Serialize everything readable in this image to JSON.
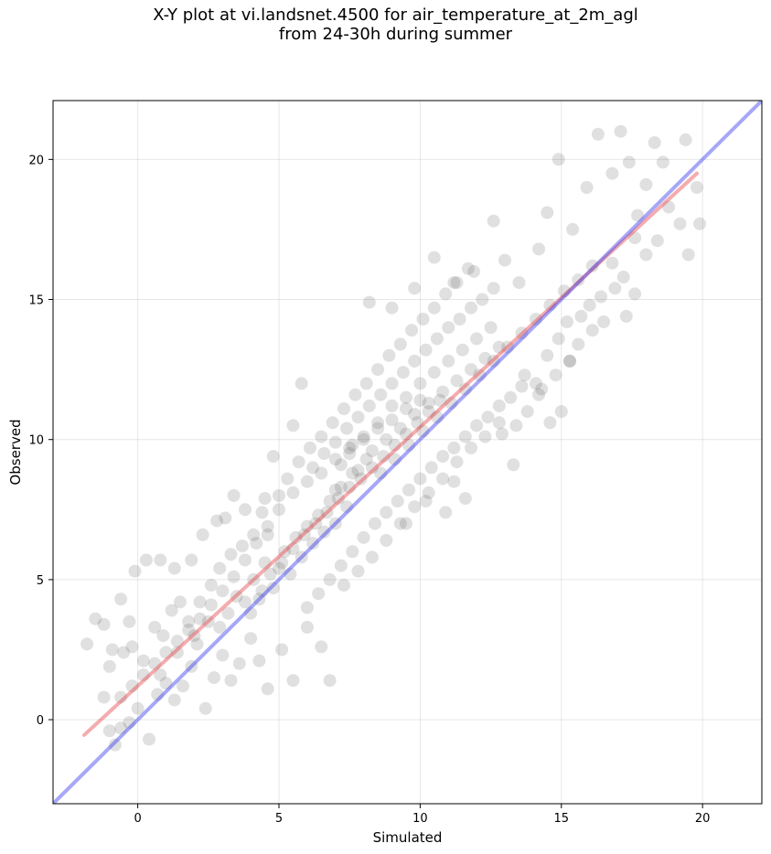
{
  "figure": {
    "title_line1": "X-Y plot at vi.landsnet.4500 for air_temperature_at_2m_agl",
    "title_line2": "from 24-30h during summer"
  },
  "chart_data": {
    "type": "scatter",
    "title": "X-Y plot at vi.landsnet.4500 for air_temperature_at_2m_agl from 24-30h during summer",
    "xlabel": "Simulated",
    "ylabel": "Observed",
    "xlim": [
      -3.0,
      22.1
    ],
    "ylim": [
      -3.0,
      22.1
    ],
    "xticks": [
      0,
      5,
      10,
      15,
      20
    ],
    "yticks": [
      0,
      5,
      10,
      15,
      20
    ],
    "grid": true,
    "point_color": "#555555",
    "point_alpha": 0.18,
    "points": [
      [
        -1.8,
        2.7
      ],
      [
        -1.5,
        3.6
      ],
      [
        -1.2,
        3.4
      ],
      [
        -0.6,
        4.3
      ],
      [
        -0.3,
        3.5
      ],
      [
        -0.1,
        5.3
      ],
      [
        0.3,
        5.7
      ],
      [
        0.8,
        5.7
      ],
      [
        1.3,
        5.4
      ],
      [
        1.9,
        5.7
      ],
      [
        2.3,
        6.6
      ],
      [
        2.8,
        7.1
      ],
      [
        3.1,
        7.2
      ],
      [
        3.4,
        8.0
      ],
      [
        3.8,
        7.5
      ],
      [
        4.5,
        7.9
      ],
      [
        4.8,
        9.4
      ],
      [
        5.5,
        10.5
      ],
      [
        5.8,
        12.0
      ],
      [
        -1.2,
        0.8
      ],
      [
        -1.0,
        1.9
      ],
      [
        -0.9,
        2.5
      ],
      [
        -0.5,
        2.4
      ],
      [
        -0.2,
        2.6
      ],
      [
        0.2,
        2.1
      ],
      [
        0.6,
        3.3
      ],
      [
        0.9,
        3.0
      ],
      [
        1.2,
        3.9
      ],
      [
        1.5,
        4.2
      ],
      [
        1.8,
        3.5
      ],
      [
        2.2,
        4.2
      ],
      [
        2.6,
        4.8
      ],
      [
        2.9,
        5.4
      ],
      [
        3.3,
        5.9
      ],
      [
        3.7,
        6.2
      ],
      [
        4.1,
        6.6
      ],
      [
        4.4,
        7.4
      ],
      [
        4.6,
        6.6
      ],
      [
        -1.0,
        -0.4
      ],
      [
        -0.8,
        -0.9
      ],
      [
        -0.6,
        -0.3
      ],
      [
        -0.3,
        -0.1
      ],
      [
        0.0,
        0.4
      ],
      [
        0.4,
        -0.7
      ],
      [
        0.7,
        0.9
      ],
      [
        1.0,
        1.3
      ],
      [
        1.3,
        0.7
      ],
      [
        1.6,
        1.2
      ],
      [
        1.9,
        1.9
      ],
      [
        2.1,
        2.7
      ],
      [
        2.4,
        0.4
      ],
      [
        2.7,
        1.5
      ],
      [
        3.0,
        2.3
      ],
      [
        3.3,
        1.4
      ],
      [
        3.6,
        2.0
      ],
      [
        4.0,
        2.9
      ],
      [
        4.3,
        2.1
      ],
      [
        4.6,
        1.1
      ],
      [
        5.1,
        2.5
      ],
      [
        5.5,
        1.4
      ],
      [
        6.0,
        3.3
      ],
      [
        6.5,
        2.6
      ],
      [
        6.8,
        1.4
      ],
      [
        0.8,
        1.6
      ],
      [
        1.4,
        2.4
      ],
      [
        2.0,
        3.0
      ],
      [
        2.5,
        3.5
      ],
      [
        2.9,
        3.3
      ],
      [
        3.2,
        3.8
      ],
      [
        3.5,
        4.4
      ],
      [
        3.8,
        4.2
      ],
      [
        4.1,
        5.0
      ],
      [
        4.3,
        4.3
      ],
      [
        4.5,
        5.6
      ],
      [
        4.8,
        4.7
      ],
      [
        5.0,
        5.4
      ],
      [
        5.2,
        6.0
      ],
      [
        5.4,
        5.2
      ],
      [
        5.6,
        6.5
      ],
      [
        5.8,
        5.8
      ],
      [
        6.0,
        6.9
      ],
      [
        6.2,
        6.3
      ],
      [
        6.4,
        7.3
      ],
      [
        6.6,
        6.7
      ],
      [
        6.8,
        7.8
      ],
      [
        7.0,
        7.0
      ],
      [
        7.2,
        8.3
      ],
      [
        7.4,
        7.6
      ],
      [
        7.6,
        8.8
      ],
      [
        4.0,
        3.8
      ],
      [
        4.4,
        4.6
      ],
      [
        4.7,
        5.2
      ],
      [
        5.1,
        5.6
      ],
      [
        5.5,
        6.1
      ],
      [
        5.9,
        6.6
      ],
      [
        6.3,
        7.0
      ],
      [
        6.7,
        7.4
      ],
      [
        7.1,
        7.9
      ],
      [
        7.5,
        8.3
      ],
      [
        7.9,
        8.6
      ],
      [
        8.3,
        9.0
      ],
      [
        8.7,
        9.4
      ],
      [
        9.1,
        9.8
      ],
      [
        9.5,
        10.2
      ],
      [
        9.9,
        10.6
      ],
      [
        10.3,
        11.0
      ],
      [
        10.7,
        11.4
      ],
      [
        5.0,
        8.0
      ],
      [
        5.3,
        8.6
      ],
      [
        5.7,
        9.2
      ],
      [
        6.1,
        9.7
      ],
      [
        6.5,
        10.1
      ],
      [
        6.9,
        10.6
      ],
      [
        7.3,
        11.1
      ],
      [
        7.7,
        11.6
      ],
      [
        8.1,
        12.0
      ],
      [
        8.5,
        12.5
      ],
      [
        8.9,
        13.0
      ],
      [
        9.3,
        13.4
      ],
      [
        9.7,
        13.9
      ],
      [
        10.1,
        14.3
      ],
      [
        10.5,
        14.7
      ],
      [
        10.9,
        15.2
      ],
      [
        11.3,
        15.6
      ],
      [
        11.7,
        16.1
      ],
      [
        6.2,
        9.0
      ],
      [
        6.6,
        9.5
      ],
      [
        7.0,
        9.9
      ],
      [
        7.4,
        10.4
      ],
      [
        7.8,
        10.8
      ],
      [
        8.2,
        11.2
      ],
      [
        8.6,
        11.6
      ],
      [
        9.0,
        12.0
      ],
      [
        9.4,
        12.4
      ],
      [
        9.8,
        12.8
      ],
      [
        10.2,
        13.2
      ],
      [
        10.6,
        13.6
      ],
      [
        11.0,
        14.0
      ],
      [
        11.4,
        14.3
      ],
      [
        11.8,
        14.7
      ],
      [
        12.2,
        15.0
      ],
      [
        12.6,
        15.4
      ],
      [
        6.0,
        4.0
      ],
      [
        6.4,
        4.5
      ],
      [
        6.8,
        5.0
      ],
      [
        7.2,
        5.5
      ],
      [
        7.6,
        6.0
      ],
      [
        8.0,
        6.5
      ],
      [
        8.4,
        7.0
      ],
      [
        8.8,
        7.4
      ],
      [
        9.2,
        7.8
      ],
      [
        9.6,
        8.2
      ],
      [
        10.0,
        8.6
      ],
      [
        10.4,
        9.0
      ],
      [
        10.8,
        9.4
      ],
      [
        11.2,
        9.7
      ],
      [
        11.6,
        10.1
      ],
      [
        12.0,
        10.5
      ],
      [
        12.4,
        10.8
      ],
      [
        12.8,
        11.2
      ],
      [
        13.2,
        11.5
      ],
      [
        13.6,
        11.9
      ],
      [
        7.3,
        4.8
      ],
      [
        7.8,
        5.3
      ],
      [
        8.3,
        5.8
      ],
      [
        8.8,
        6.4
      ],
      [
        9.3,
        7.0
      ],
      [
        9.8,
        7.6
      ],
      [
        10.3,
        8.1
      ],
      [
        10.8,
        8.6
      ],
      [
        11.3,
        9.2
      ],
      [
        11.8,
        9.7
      ],
      [
        12.3,
        10.1
      ],
      [
        12.8,
        10.6
      ],
      [
        13.3,
        9.1
      ],
      [
        13.8,
        11.0
      ],
      [
        14.3,
        11.8
      ],
      [
        14.8,
        12.3
      ],
      [
        15.3,
        12.8
      ],
      [
        7.0,
        8.2
      ],
      [
        7.2,
        9.1
      ],
      [
        7.5,
        9.5
      ],
      [
        7.8,
        8.9
      ],
      [
        8.0,
        10.1
      ],
      [
        8.3,
        9.6
      ],
      [
        8.5,
        10.6
      ],
      [
        8.8,
        10.0
      ],
      [
        9.0,
        11.2
      ],
      [
        9.3,
        10.4
      ],
      [
        9.5,
        11.5
      ],
      [
        9.8,
        10.9
      ],
      [
        10.0,
        12.0
      ],
      [
        10.3,
        11.3
      ],
      [
        10.5,
        12.4
      ],
      [
        10.8,
        11.7
      ],
      [
        11.0,
        12.8
      ],
      [
        11.3,
        12.1
      ],
      [
        11.5,
        13.2
      ],
      [
        11.8,
        12.5
      ],
      [
        12.0,
        13.6
      ],
      [
        12.3,
        12.9
      ],
      [
        12.5,
        14.0
      ],
      [
        12.8,
        13.3
      ],
      [
        7.6,
        9.8
      ],
      [
        8.1,
        9.3
      ],
      [
        8.6,
        8.8
      ],
      [
        9.1,
        9.3
      ],
      [
        9.6,
        9.8
      ],
      [
        10.1,
        10.3
      ],
      [
        10.6,
        10.8
      ],
      [
        11.1,
        11.3
      ],
      [
        11.6,
        11.8
      ],
      [
        12.1,
        12.3
      ],
      [
        12.6,
        12.8
      ],
      [
        13.1,
        13.3
      ],
      [
        13.6,
        13.8
      ],
      [
        14.1,
        14.3
      ],
      [
        14.6,
        14.8
      ],
      [
        15.1,
        15.3
      ],
      [
        15.6,
        15.7
      ],
      [
        16.1,
        16.2
      ],
      [
        8.2,
        14.9
      ],
      [
        9.0,
        14.7
      ],
      [
        9.8,
        15.4
      ],
      [
        10.5,
        16.5
      ],
      [
        11.2,
        15.6
      ],
      [
        11.9,
        16.0
      ],
      [
        12.6,
        17.8
      ],
      [
        13.0,
        16.4
      ],
      [
        13.5,
        15.6
      ],
      [
        14.2,
        16.8
      ],
      [
        14.5,
        18.1
      ],
      [
        14.9,
        20.0
      ],
      [
        15.4,
        17.5
      ],
      [
        15.9,
        19.0
      ],
      [
        16.3,
        20.9
      ],
      [
        16.8,
        19.5
      ],
      [
        17.1,
        21.0
      ],
      [
        17.4,
        19.9
      ],
      [
        17.7,
        18.0
      ],
      [
        18.0,
        19.1
      ],
      [
        18.3,
        20.6
      ],
      [
        18.6,
        19.9
      ],
      [
        19.4,
        20.7
      ],
      [
        15.2,
        14.2
      ],
      [
        15.6,
        13.4
      ],
      [
        16.0,
        14.8
      ],
      [
        16.4,
        15.1
      ],
      [
        16.8,
        16.3
      ],
      [
        17.2,
        15.8
      ],
      [
        17.6,
        17.2
      ],
      [
        18.0,
        16.6
      ],
      [
        18.4,
        17.1
      ],
      [
        18.8,
        18.3
      ],
      [
        19.2,
        17.7
      ],
      [
        19.5,
        16.6
      ],
      [
        19.8,
        19.0
      ],
      [
        19.9,
        17.7
      ],
      [
        13.7,
        12.3
      ],
      [
        14.1,
        12.0
      ],
      [
        14.5,
        13.0
      ],
      [
        14.9,
        13.6
      ],
      [
        15.3,
        12.8
      ],
      [
        15.7,
        14.4
      ],
      [
        16.1,
        13.9
      ],
      [
        16.5,
        14.2
      ],
      [
        16.9,
        15.4
      ],
      [
        17.3,
        14.4
      ],
      [
        17.6,
        15.2
      ],
      [
        15.0,
        11.0
      ],
      [
        14.6,
        10.6
      ],
      [
        14.2,
        11.6
      ],
      [
        12.9,
        10.2
      ],
      [
        13.4,
        10.5
      ],
      [
        11.2,
        8.5
      ],
      [
        11.6,
        7.9
      ],
      [
        10.9,
        7.4
      ],
      [
        10.2,
        7.8
      ],
      [
        9.5,
        7.0
      ],
      [
        5.0,
        7.5
      ],
      [
        5.5,
        8.1
      ],
      [
        6.0,
        8.5
      ],
      [
        6.5,
        8.8
      ],
      [
        7.0,
        9.3
      ],
      [
        7.5,
        9.7
      ],
      [
        8.0,
        10.0
      ],
      [
        8.5,
        10.4
      ],
      [
        9.0,
        10.7
      ],
      [
        9.5,
        11.1
      ],
      [
        10.0,
        11.4
      ],
      [
        4.6,
        6.9
      ],
      [
        4.2,
        6.3
      ],
      [
        3.8,
        5.7
      ],
      [
        3.4,
        5.1
      ],
      [
        3.0,
        4.6
      ],
      [
        2.6,
        4.1
      ],
      [
        2.2,
        3.6
      ],
      [
        1.8,
        3.2
      ],
      [
        1.4,
        2.8
      ],
      [
        1.0,
        2.4
      ],
      [
        0.6,
        2.0
      ],
      [
        0.2,
        1.6
      ],
      [
        -0.2,
        1.2
      ],
      [
        -0.6,
        0.8
      ]
    ],
    "fit_line": {
      "color": "#e8474c",
      "alpha": 0.45,
      "x": [
        -1.9,
        19.8
      ],
      "y": [
        -0.55,
        19.5
      ]
    },
    "identity_line": {
      "color": "#3c3cf0",
      "alpha": 0.45,
      "x": [
        -3.0,
        22.1
      ],
      "y": [
        -3.0,
        22.1
      ]
    }
  }
}
